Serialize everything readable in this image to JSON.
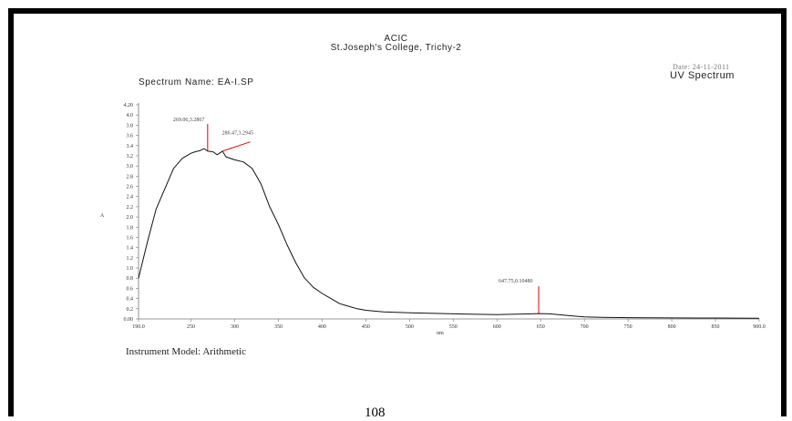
{
  "header": {
    "org": "ACIC",
    "college": "St.Joseph's College, Trichy-2",
    "spectrum_name": "Spectrum Name: EA-I.SP",
    "date": "Date: 24-11-2011",
    "spectrum_type": "UV Spectrum"
  },
  "footer": {
    "instrument": "Instrument Model: Arithmetic",
    "page_number": "108"
  },
  "chart_data": {
    "type": "line",
    "xlabel": "nm",
    "ylabel": "A",
    "xlim": [
      190,
      900
    ],
    "ylim": [
      0,
      4.2
    ],
    "grid": false,
    "x_ticks": [
      "190.0",
      "250",
      "300",
      "350",
      "400",
      "450",
      "500",
      "550",
      "600",
      "650",
      "700",
      "750",
      "800",
      "850",
      "900.0"
    ],
    "y_ticks": [
      "0.00",
      "0.2",
      "0.4",
      "0.6",
      "0.8",
      "1.0",
      "1.2",
      "1.4",
      "1.6",
      "1.8",
      "2.0",
      "2.2",
      "2.4",
      "2.6",
      "2.8",
      "3.0",
      "3.2",
      "3.4",
      "3.6",
      "3.8",
      "4.0",
      "4.20"
    ],
    "series": [
      {
        "x": [
          190,
          200,
          210,
          220,
          230,
          240,
          250,
          255,
          260,
          265,
          269,
          275,
          280,
          286,
          290,
          300,
          310,
          320,
          330,
          340,
          350,
          360,
          370,
          380,
          390,
          400,
          410,
          420,
          430,
          440,
          450,
          470,
          500,
          550,
          600,
          640,
          648,
          660,
          680,
          700,
          720,
          750,
          800,
          850,
          900
        ],
        "y": [
          0.8,
          1.5,
          2.15,
          2.55,
          2.95,
          3.15,
          3.25,
          3.28,
          3.3,
          3.34,
          3.29,
          3.28,
          3.22,
          3.29,
          3.18,
          3.12,
          3.08,
          2.95,
          2.65,
          2.2,
          1.85,
          1.45,
          1.1,
          0.8,
          0.62,
          0.5,
          0.4,
          0.3,
          0.25,
          0.2,
          0.17,
          0.14,
          0.12,
          0.1,
          0.085,
          0.1,
          0.105,
          0.1,
          0.07,
          0.04,
          0.03,
          0.025,
          0.02,
          0.018,
          0.015
        ]
      }
    ],
    "peaks": [
      {
        "x": 269.06,
        "y": 3.2867,
        "label": "269.06,3.2867"
      },
      {
        "x": 286.47,
        "y": 3.2945,
        "label": "286.47,3.2945"
      },
      {
        "x": 647.75,
        "y": 0.1048,
        "label": "647.75,0.10480"
      }
    ]
  }
}
